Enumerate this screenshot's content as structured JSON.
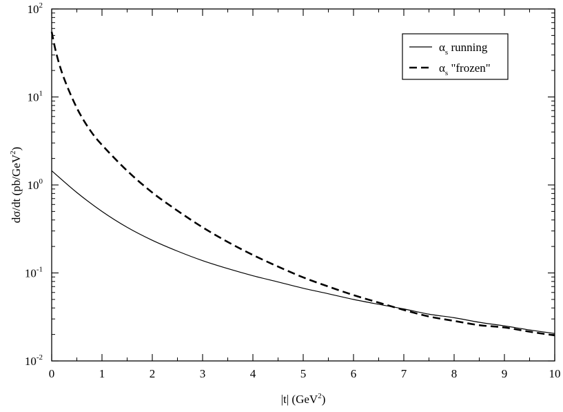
{
  "chart_data": {
    "type": "line",
    "title": "",
    "xlabel": "|t| (GeV",
    "xlabel_sup": "2",
    "xlabel_tail": ")",
    "ylabel": "dσ/dt (pb/GeV",
    "ylabel_sup": "2",
    "ylabel_tail": ")",
    "xlim": [
      0,
      10
    ],
    "ylim": [
      0.01,
      100
    ],
    "yscale": "log",
    "grid": false,
    "legend_position": "top-right",
    "x_ticks": [
      {
        "value": 0,
        "label": "0"
      },
      {
        "value": 1,
        "label": "1"
      },
      {
        "value": 2,
        "label": "2"
      },
      {
        "value": 3,
        "label": "3"
      },
      {
        "value": 4,
        "label": "4"
      },
      {
        "value": 5,
        "label": "5"
      },
      {
        "value": 6,
        "label": "6"
      },
      {
        "value": 7,
        "label": "7"
      },
      {
        "value": 8,
        "label": "8"
      },
      {
        "value": 9,
        "label": "9"
      },
      {
        "value": 10,
        "label": "10"
      }
    ],
    "y_ticks": [
      {
        "value": 0.01,
        "base": "10",
        "exp": "-2"
      },
      {
        "value": 0.1,
        "base": "10",
        "exp": "-1"
      },
      {
        "value": 1,
        "base": "10",
        "exp": "0"
      },
      {
        "value": 10,
        "base": "10",
        "exp": "1"
      },
      {
        "value": 100,
        "base": "10",
        "exp": "2"
      }
    ],
    "series": [
      {
        "name": "α",
        "name_sub": "s",
        "name_tail": " running",
        "line_style": "solid",
        "color": "#000000",
        "x": [
          0,
          0.5,
          1,
          1.5,
          2,
          2.5,
          3,
          3.5,
          4,
          4.5,
          5,
          5.5,
          6,
          6.5,
          7,
          7.5,
          8,
          8.5,
          9,
          9.5,
          10
        ],
        "y": [
          1.45,
          0.82,
          0.5,
          0.33,
          0.235,
          0.177,
          0.138,
          0.112,
          0.093,
          0.079,
          0.067,
          0.058,
          0.05,
          0.044,
          0.039,
          0.034,
          0.031,
          0.0275,
          0.025,
          0.0225,
          0.0205
        ]
      },
      {
        "name": "α",
        "name_sub": "s",
        "name_tail": " \"frozen\"",
        "line_style": "dashed",
        "color": "#000000",
        "x": [
          0,
          0.1,
          0.25,
          0.5,
          0.75,
          1,
          1.5,
          2,
          2.5,
          3,
          3.5,
          4,
          4.5,
          5,
          5.5,
          6,
          6.5,
          7,
          7.5,
          8,
          8.5,
          9,
          9.5,
          10
        ],
        "y": [
          55,
          30,
          16,
          7.5,
          4.3,
          2.85,
          1.45,
          0.82,
          0.51,
          0.33,
          0.225,
          0.16,
          0.118,
          0.089,
          0.07,
          0.056,
          0.046,
          0.038,
          0.032,
          0.0285,
          0.0255,
          0.024,
          0.0215,
          0.0195
        ]
      }
    ]
  }
}
